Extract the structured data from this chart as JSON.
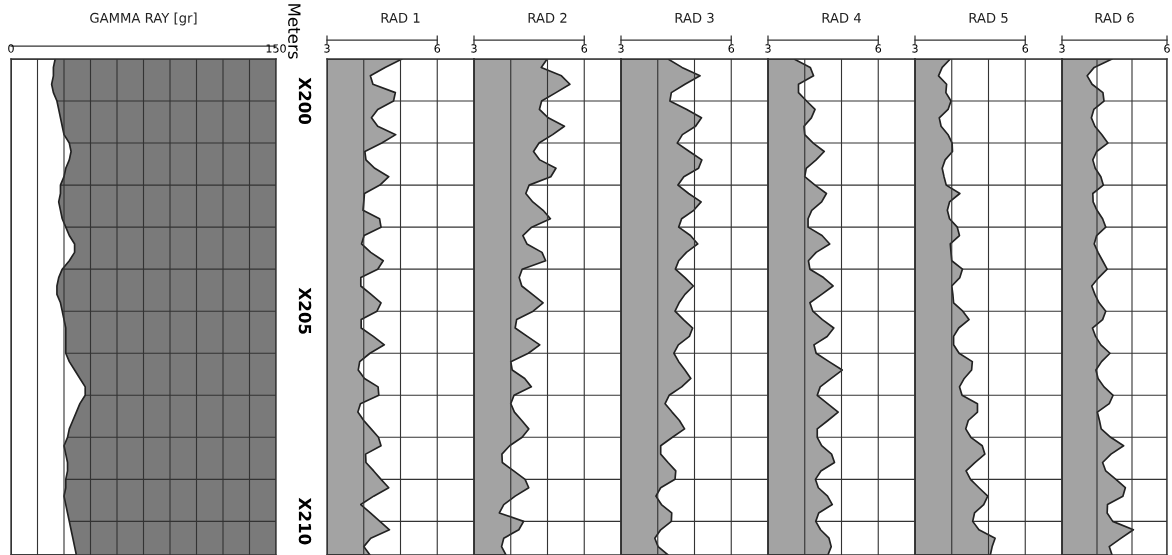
{
  "chart_data": [
    {
      "type": "area",
      "orientation": "horizontal",
      "title": "GAMMA RAY [gr]",
      "ylabel": "Meters",
      "grid": true,
      "categories": [
        null,
        null,
        null,
        null,
        null,
        "X200",
        null,
        null,
        null,
        null,
        null,
        null,
        null,
        null,
        null,
        null,
        null,
        null,
        null,
        null,
        null,
        null,
        null,
        null,
        null,
        null,
        null,
        null,
        null,
        null,
        "X205",
        null,
        null,
        null,
        null,
        null,
        null,
        null,
        null,
        null,
        null,
        null,
        null,
        null,
        null,
        null,
        null,
        null,
        null,
        null,
        null,
        null,
        null,
        null,
        null,
        "X210",
        null,
        null,
        null,
        null
      ],
      "xlim": [
        0,
        150
      ],
      "xticks": [
        0,
        {
          "value": 15,
          "label": null
        },
        {
          "value": 30,
          "label": null
        },
        {
          "value": 45,
          "label": null
        },
        {
          "value": 60,
          "label": null
        },
        {
          "value": 75,
          "label": null
        },
        {
          "value": 90,
          "label": null
        },
        {
          "value": 105,
          "label": null
        },
        {
          "value": 120,
          "label": null
        },
        {
          "value": 135,
          "label": null
        },
        150
      ],
      "series": [
        {
          "color": "#ffffff",
          "values": [
            25,
            24,
            24,
            23,
            24,
            26,
            27,
            28,
            29,
            30,
            33,
            34,
            33,
            31,
            30,
            28,
            28,
            27,
            28,
            29,
            31,
            33,
            36,
            36,
            33,
            29,
            27,
            26,
            26,
            28,
            29,
            30,
            31,
            31,
            31,
            31,
            33,
            36,
            39,
            42,
            42,
            39,
            37,
            35,
            33,
            32,
            30,
            31,
            32,
            32,
            31,
            31,
            30,
            31,
            32,
            33,
            34,
            35,
            36,
            37
          ]
        }
      ]
    },
    {
      "type": "area",
      "orientation": "horizontal",
      "title": "RAD 1",
      "grid": true,
      "tick_labels": "x",
      "categories": [
        null,
        null,
        null,
        null,
        null,
        null,
        null,
        null,
        null,
        null,
        null,
        null,
        null,
        null,
        null,
        null,
        null,
        null,
        null,
        null,
        null,
        null,
        null,
        null,
        null,
        null,
        null,
        null,
        null,
        null,
        null,
        null,
        null,
        null,
        null,
        null,
        null,
        null,
        null,
        null,
        null,
        null,
        null,
        null,
        null,
        null,
        null,
        null,
        null,
        null,
        null,
        null,
        null,
        null,
        null,
        null,
        null,
        null,
        null,
        null
      ],
      "xlim": [
        3,
        7
      ],
      "xticks": [
        3,
        {
          "value": 4,
          "label": null
        },
        {
          "value": 5,
          "label": null
        },
        6,
        {
          "value": 7,
          "label": null
        }
      ],
      "series": [
        {
          "color": "#a3a3a3",
          "values": [
            5.04,
            4.58,
            4.18,
            4.25,
            4.86,
            4.81,
            4.38,
            4.21,
            4.38,
            4.87,
            4.49,
            4.03,
            4.06,
            4.3,
            4.68,
            4.44,
            4.02,
            4.0,
            3.98,
            4.43,
            4.47,
            4.01,
            3.94,
            4.19,
            4.53,
            4.38,
            3.92,
            3.92,
            4.2,
            4.47,
            4.36,
            3.93,
            3.93,
            4.26,
            4.56,
            4.17,
            3.89,
            3.85,
            4.02,
            4.39,
            4.41,
            3.91,
            3.84,
            4.0,
            4.2,
            4.4,
            4.47,
            4.05,
            4.06,
            4.27,
            4.47,
            4.68,
            4.27,
            3.92,
            4.18,
            4.44,
            4.7,
            4.19,
            4.0,
            4.17
          ]
        }
      ]
    },
    {
      "type": "area",
      "orientation": "horizontal",
      "title": "RAD 2",
      "grid": true,
      "tick_labels": "x",
      "categories": [
        null,
        null,
        null,
        null,
        null,
        null,
        null,
        null,
        null,
        null,
        null,
        null,
        null,
        null,
        null,
        null,
        null,
        null,
        null,
        null,
        null,
        null,
        null,
        null,
        null,
        null,
        null,
        null,
        null,
        null,
        null,
        null,
        null,
        null,
        null,
        null,
        null,
        null,
        null,
        null,
        null,
        null,
        null,
        null,
        null,
        null,
        null,
        null,
        null,
        null,
        null,
        null,
        null,
        null,
        null,
        null,
        null,
        null,
        null,
        null
      ],
      "xlim": [
        3,
        7
      ],
      "xticks": [
        3,
        {
          "value": 4,
          "label": null
        },
        {
          "value": 5,
          "label": null
        },
        6,
        {
          "value": 7,
          "label": null
        }
      ],
      "series": [
        {
          "color": "#a3a3a3",
          "values": [
            4.99,
            4.83,
            5.38,
            5.61,
            5.23,
            4.84,
            4.78,
            5.02,
            5.46,
            5.14,
            4.77,
            4.62,
            4.79,
            5.23,
            5.09,
            4.5,
            4.41,
            4.6,
            4.88,
            5.08,
            4.57,
            4.33,
            4.44,
            4.85,
            4.95,
            4.31,
            4.23,
            4.3,
            4.59,
            4.88,
            4.61,
            4.16,
            4.12,
            4.45,
            4.79,
            4.48,
            4.0,
            4.04,
            4.38,
            4.56,
            4.09,
            4.0,
            4.1,
            4.3,
            4.49,
            4.31,
            3.97,
            3.76,
            3.77,
            4.08,
            4.39,
            4.49,
            4.12,
            3.81,
            3.69,
            4.35,
            4.22,
            3.81,
            3.75,
            3.87
          ]
        }
      ]
    },
    {
      "type": "area",
      "orientation": "horizontal",
      "title": "RAD 3",
      "grid": true,
      "tick_labels": "x",
      "categories": [
        null,
        null,
        null,
        null,
        null,
        null,
        null,
        null,
        null,
        null,
        null,
        null,
        null,
        null,
        null,
        null,
        null,
        null,
        null,
        null,
        null,
        null,
        null,
        null,
        null,
        null,
        null,
        null,
        null,
        null,
        null,
        null,
        null,
        null,
        null,
        null,
        null,
        null,
        null,
        null,
        null,
        null,
        null,
        null,
        null,
        null,
        null,
        null,
        null,
        null,
        null,
        null,
        null,
        null,
        null,
        null,
        null,
        null,
        null,
        null
      ],
      "xlim": [
        3,
        7
      ],
      "xticks": [
        3,
        {
          "value": 4,
          "label": null
        },
        {
          "value": 5,
          "label": null
        },
        6,
        {
          "value": 7,
          "label": null
        }
      ],
      "series": [
        {
          "color": "#a3a3a3",
          "values": [
            4.28,
            4.66,
            5.15,
            4.74,
            4.37,
            4.33,
            4.79,
            5.19,
            5.03,
            4.67,
            4.53,
            4.86,
            5.2,
            5.11,
            4.71,
            4.55,
            4.84,
            5.18,
            4.98,
            4.65,
            4.57,
            4.89,
            5.09,
            4.78,
            4.57,
            4.48,
            4.74,
            4.97,
            4.74,
            4.58,
            4.47,
            4.7,
            4.95,
            4.86,
            4.56,
            4.44,
            4.57,
            4.74,
            4.9,
            4.65,
            4.31,
            4.2,
            4.39,
            4.59,
            4.73,
            4.4,
            4.08,
            4.08,
            4.28,
            4.49,
            4.47,
            4.08,
            3.95,
            4.1,
            4.38,
            4.37,
            4.08,
            3.92,
            4.01,
            4.28
          ]
        }
      ]
    },
    {
      "type": "area",
      "orientation": "horizontal",
      "title": "RAD 4",
      "grid": true,
      "tick_labels": "x",
      "categories": [
        null,
        null,
        null,
        null,
        null,
        null,
        null,
        null,
        null,
        null,
        null,
        null,
        null,
        null,
        null,
        null,
        null,
        null,
        null,
        null,
        null,
        null,
        null,
        null,
        null,
        null,
        null,
        null,
        null,
        null,
        null,
        null,
        null,
        null,
        null,
        null,
        null,
        null,
        null,
        null,
        null,
        null,
        null,
        null,
        null,
        null,
        null,
        null,
        null,
        null,
        null,
        null,
        null,
        null,
        null,
        null,
        null,
        null,
        null,
        null
      ],
      "xlim": [
        3,
        7
      ],
      "xticks": [
        3,
        {
          "value": 4,
          "label": null
        },
        {
          "value": 5,
          "label": null
        },
        6,
        {
          "value": 7,
          "label": null
        }
      ],
      "series": [
        {
          "color": "#a3a3a3",
          "values": [
            3.71,
            4.15,
            4.24,
            3.83,
            3.83,
            4.05,
            4.28,
            4.18,
            3.98,
            4.0,
            4.23,
            4.53,
            4.31,
            4.04,
            4.0,
            4.28,
            4.59,
            4.46,
            4.19,
            4.09,
            4.09,
            4.47,
            4.68,
            4.31,
            4.1,
            4.14,
            4.51,
            4.77,
            4.46,
            4.14,
            4.22,
            4.48,
            4.79,
            4.61,
            4.25,
            4.31,
            4.66,
            5.02,
            4.72,
            4.42,
            4.34,
            4.62,
            4.91,
            4.63,
            4.34,
            4.34,
            4.46,
            4.73,
            4.81,
            4.44,
            4.29,
            4.37,
            4.62,
            4.75,
            4.38,
            4.3,
            4.43,
            4.66,
            4.72,
            4.63
          ]
        }
      ]
    },
    {
      "type": "area",
      "orientation": "horizontal",
      "title": "RAD 5",
      "grid": true,
      "tick_labels": "x",
      "categories": [
        null,
        null,
        null,
        null,
        null,
        null,
        null,
        null,
        null,
        null,
        null,
        null,
        null,
        null,
        null,
        null,
        null,
        null,
        null,
        null,
        null,
        null,
        null,
        null,
        null,
        null,
        null,
        null,
        null,
        null,
        null,
        null,
        null,
        null,
        null,
        null,
        null,
        null,
        null,
        null,
        null,
        null,
        null,
        null,
        null,
        null,
        null,
        null,
        null,
        null,
        null,
        null,
        null,
        null,
        null,
        null,
        null,
        null,
        null,
        null
      ],
      "xlim": [
        3,
        7
      ],
      "xticks": [
        3,
        {
          "value": 4,
          "label": null
        },
        {
          "value": 5,
          "label": null
        },
        6,
        {
          "value": 7,
          "label": null
        }
      ],
      "series": [
        {
          "color": "#a3a3a3",
          "values": [
            3.96,
            3.74,
            3.64,
            3.86,
            3.84,
            3.98,
            3.9,
            3.66,
            3.71,
            3.9,
            4.01,
            4.02,
            3.82,
            3.74,
            3.79,
            3.85,
            4.22,
            3.94,
            3.88,
            3.94,
            4.15,
            4.21,
            3.96,
            3.98,
            4.0,
            4.29,
            4.22,
            4.0,
            4.03,
            4.05,
            4.3,
            4.47,
            4.19,
            4.05,
            4.05,
            4.2,
            4.56,
            4.54,
            4.34,
            4.21,
            4.28,
            4.7,
            4.7,
            4.45,
            4.38,
            4.52,
            4.83,
            4.9,
            4.63,
            4.39,
            4.51,
            4.74,
            4.98,
            4.87,
            4.62,
            4.57,
            4.74,
            5.18,
            5.1,
            5.05
          ]
        }
      ]
    },
    {
      "type": "area",
      "orientation": "horizontal",
      "title": "RAD 6",
      "grid": true,
      "tick_labels": "x",
      "categories": [
        null,
        null,
        null,
        null,
        null,
        null,
        null,
        null,
        null,
        null,
        null,
        null,
        null,
        null,
        null,
        null,
        null,
        null,
        null,
        null,
        null,
        null,
        null,
        null,
        null,
        null,
        null,
        null,
        null,
        null,
        null,
        null,
        null,
        null,
        null,
        null,
        null,
        null,
        null,
        null,
        null,
        null,
        null,
        null,
        null,
        null,
        null,
        null,
        null,
        null,
        null,
        null,
        null,
        null,
        null,
        null,
        null,
        null,
        null,
        null
      ],
      "xlim": [
        3,
        6
      ],
      "xticks": [
        3,
        {
          "value": 4,
          "label": null
        },
        {
          "value": 5,
          "label": null
        },
        6
      ],
      "series": [
        {
          "color": "#a3a3a3",
          "values": [
            4.43,
            3.92,
            3.72,
            3.86,
            4.17,
            4.2,
            3.91,
            3.84,
            3.94,
            4.14,
            4.31,
            3.99,
            3.88,
            3.95,
            4.11,
            4.18,
            3.88,
            3.89,
            4.0,
            4.16,
            4.25,
            3.99,
            3.92,
            4.03,
            4.16,
            4.29,
            4.05,
            3.85,
            3.94,
            4.06,
            4.25,
            4.16,
            3.87,
            3.96,
            4.11,
            4.37,
            4.13,
            3.97,
            4.03,
            4.2,
            4.46,
            4.35,
            4.01,
            4.07,
            4.12,
            4.39,
            4.76,
            4.4,
            4.16,
            4.25,
            4.54,
            4.81,
            4.74,
            4.3,
            4.29,
            4.45,
            5.04,
            4.69,
            4.35,
            4.43
          ]
        }
      ]
    }
  ]
}
